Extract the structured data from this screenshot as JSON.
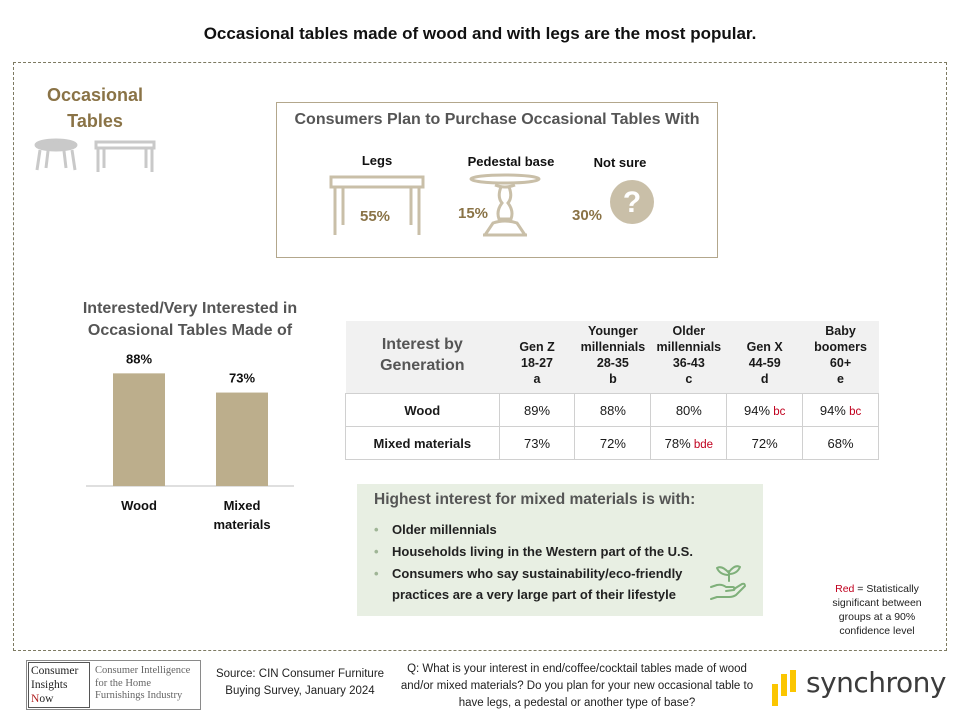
{
  "headline": "Occasional tables made of wood and with legs are the most popular.",
  "section": {
    "title_line1": "Occasional",
    "title_line2": "Tables"
  },
  "plan": {
    "title": "Consumers Plan to Purchase Occasional Tables With",
    "options": [
      {
        "label": "Legs",
        "pct": "55%",
        "icon": "table-legs-icon"
      },
      {
        "label": "Pedestal base",
        "pct": "15%",
        "icon": "pedestal-table-icon"
      },
      {
        "label": "Not sure",
        "pct": "30%",
        "icon": "question-mark-icon"
      }
    ]
  },
  "chart_data": {
    "type": "bar",
    "title_line1": "Interested/Very Interested in",
    "title_line2": "Occasional Tables Made of",
    "categories": [
      "Wood",
      "Mixed materials"
    ],
    "category_lines": [
      [
        "Wood"
      ],
      [
        "Mixed",
        "materials"
      ]
    ],
    "values": [
      88,
      73
    ],
    "value_labels": [
      "88%",
      "73%"
    ],
    "ylim": [
      0,
      100
    ],
    "grid": false,
    "bar_color": "#bcae8c"
  },
  "table": {
    "corner_line1": "Interest by",
    "corner_line2": "Generation",
    "columns": [
      {
        "lines": [
          "Gen Z",
          "18-27",
          "a"
        ]
      },
      {
        "lines": [
          "Younger",
          "millennials",
          "28-35",
          "b"
        ]
      },
      {
        "lines": [
          "Older",
          "millennials",
          "36-43",
          "c"
        ]
      },
      {
        "lines": [
          "Gen X",
          "44-59",
          "d"
        ]
      },
      {
        "lines": [
          "Baby",
          "boomers",
          "60+",
          "e"
        ]
      }
    ],
    "rows": [
      {
        "label": "Wood",
        "cells": [
          {
            "value": "89%",
            "sig": ""
          },
          {
            "value": "88%",
            "sig": ""
          },
          {
            "value": "80%",
            "sig": ""
          },
          {
            "value": "94%",
            "sig": "bc"
          },
          {
            "value": "94%",
            "sig": "bc"
          }
        ]
      },
      {
        "label": "Mixed materials",
        "cells": [
          {
            "value": "73%",
            "sig": ""
          },
          {
            "value": "72%",
            "sig": ""
          },
          {
            "value": "78%",
            "sig": "bde"
          },
          {
            "value": "72%",
            "sig": ""
          },
          {
            "value": "68%",
            "sig": ""
          }
        ]
      }
    ]
  },
  "callout": {
    "title": "Highest interest for mixed materials is with:",
    "items": [
      [
        "Older millennials"
      ],
      [
        "Households living in the Western part of the U.S."
      ],
      [
        "Consumers who say sustainability/eco-friendly",
        "practices are a very large part of their lifestyle"
      ]
    ],
    "icon": "eco-hand-icon"
  },
  "sig_note": {
    "red_word": "Red",
    "text": " = Statistically significant between groups at a 90% confidence level"
  },
  "footer": {
    "cin_logo": {
      "line1": "Consumer",
      "line2": "Insights",
      "line3_initial": "N",
      "line3_rest": "ow",
      "desc": "Consumer Intelligence for the Home Furnishings Industry"
    },
    "source": "Source: CIN Consumer Furniture Buying Survey, January 2024",
    "question": "Q: What is your interest in end/coffee/cocktail tables made of wood and/or mixed materials? Do you plan for your new occasional table to have legs, a pedestal or another type of base?",
    "brand": "synchrony",
    "brand_color": "#fbc600"
  },
  "colors": {
    "accent": "#8a7346",
    "bar": "#bcae8c",
    "icon": "#c9bfa8",
    "sig_red": "#c0001e",
    "callout_bg": "#e8efe3",
    "frame": "#7d7a62"
  }
}
